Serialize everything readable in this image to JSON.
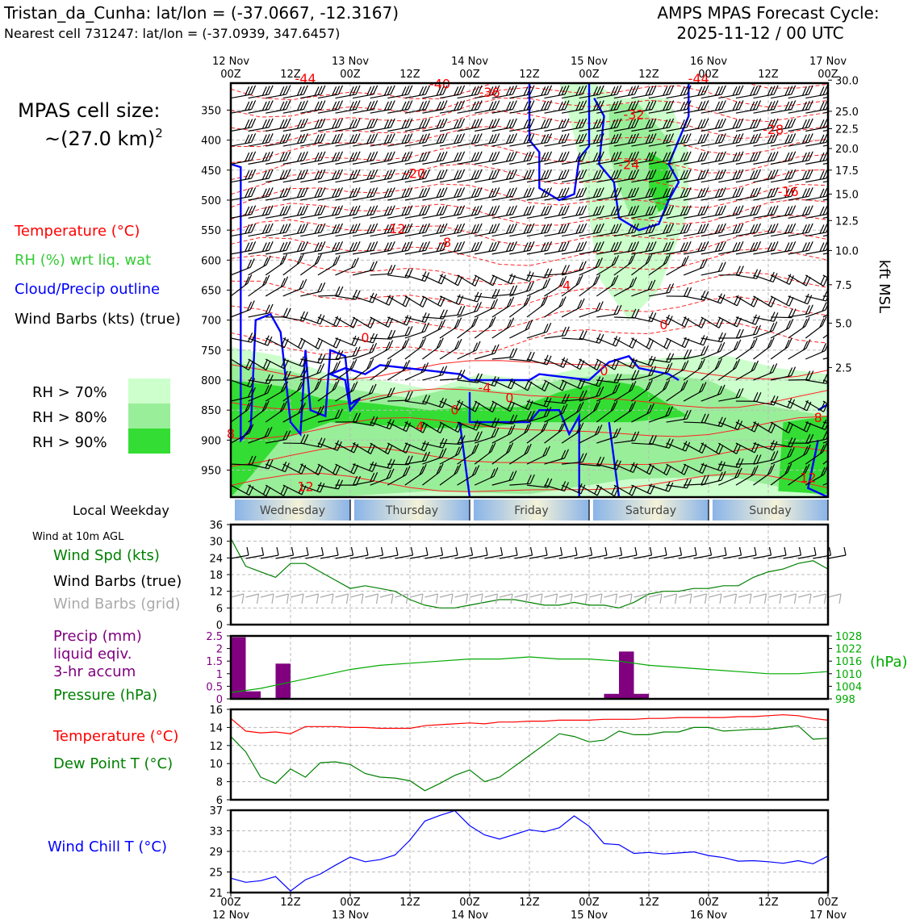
{
  "header": {
    "station": "Tristan_da_Cunha: lat/lon = (-37.0667, -12.3167)",
    "nearest": "Nearest cell 731247: lat/lon = (-37.0939, 347.6457)",
    "cycle_label": "AMPS MPAS Forecast Cycle:",
    "cycle_time": "2025-11-12 / 00 UTC"
  },
  "cell_size": {
    "label": "MPAS cell size:",
    "value": "~(27.0 km)",
    "exponent": "2"
  },
  "legend": {
    "temperature": "Temperature (°C)",
    "rh": "RH (%) wrt liq. wat",
    "cloud": "Cloud/Precip outline",
    "wind": "Wind Barbs (kts) (true)",
    "rh70": "RH > 70%",
    "rh80": "RH > 80%",
    "rh90": "RH > 90%"
  },
  "colors": {
    "temperature": "#ff0000",
    "rh_line": "#00aa00",
    "rh_label": "#33cc33",
    "cloud": "#0000ff",
    "precip": "#800080",
    "rh70": "#ccffcc",
    "rh80": "#99ee99",
    "rh90": "#33dd33"
  },
  "right_axis_label": "kft MSL",
  "weekday_label": "Local Weekday",
  "weekdays": [
    "Wednesday",
    "Thursday",
    "Friday",
    "Saturday",
    "Sunday"
  ],
  "wind10m_label": "Wind at 10m AGL",
  "panel_labels": {
    "wind_spd": "Wind Spd (kts)",
    "wind_true": "Wind Barbs (true)",
    "wind_grid": "Wind Barbs (grid)",
    "precip1": "Precip (mm)",
    "precip2": "liquid eqiv.",
    "precip3": "3-hr accum",
    "pressure": "Pressure (hPa)",
    "hpa_unit": "(hPa)",
    "temp": "Temperature (°C)",
    "dew": "Dew Point T (°C)",
    "chill": "Wind Chill T (°C)"
  },
  "chart_data": [
    {
      "type": "time-height cross-section",
      "time_ticks": [
        "00Z",
        "12Z",
        "00Z",
        "12Z",
        "00Z",
        "12Z",
        "00Z",
        "12Z",
        "00Z",
        "12Z",
        "00Z"
      ],
      "date_ticks": [
        "12 Nov",
        "13 Nov",
        "14 Nov",
        "15 Nov",
        "16 Nov",
        "17 Nov"
      ],
      "pressure_ticks": [
        350,
        400,
        450,
        500,
        550,
        600,
        650,
        700,
        750,
        800,
        850,
        900,
        950
      ],
      "kft_ticks": [
        "30.0",
        "25.0",
        "22.5",
        "20.0",
        "17.5",
        "15.0",
        "12.5",
        "10.0",
        "7.5",
        "5.0",
        "2.5"
      ],
      "kft_levels": [
        300,
        352,
        381,
        414,
        450,
        490,
        534,
        584,
        641,
        705,
        779
      ],
      "temperature_labels": [
        {
          "text": "-44",
          "h": 15,
          "p": 305
        },
        {
          "text": "-40",
          "h": 42,
          "p": 314
        },
        {
          "text": "-36",
          "h": 52,
          "p": 328
        },
        {
          "text": "-44",
          "h": 94,
          "p": 305
        },
        {
          "text": "-32",
          "h": 81,
          "p": 365
        },
        {
          "text": "-28",
          "h": 109,
          "p": 390
        },
        {
          "text": "-24",
          "h": 80,
          "p": 448
        },
        {
          "text": "-20",
          "h": 37,
          "p": 463
        },
        {
          "text": "-16",
          "h": 112,
          "p": 493
        },
        {
          "text": "-12",
          "h": 33,
          "p": 555
        },
        {
          "text": "-8",
          "h": 43,
          "p": 578
        },
        {
          "text": "-4",
          "h": 67,
          "p": 650
        },
        {
          "text": "0",
          "h": 87,
          "p": 715
        },
        {
          "text": "0",
          "h": 27,
          "p": 737
        },
        {
          "text": "0",
          "h": 75,
          "p": 792
        },
        {
          "text": "-4",
          "h": 51,
          "p": 820
        },
        {
          "text": "0",
          "h": 56,
          "p": 837
        },
        {
          "text": "0",
          "h": 45,
          "p": 857
        },
        {
          "text": "4",
          "h": 38,
          "p": 885
        },
        {
          "text": "8",
          "h": 0,
          "p": 897
        },
        {
          "text": "8",
          "h": 118,
          "p": 870
        },
        {
          "text": "12",
          "h": 15,
          "p": 985
        },
        {
          "text": "12",
          "h": 116,
          "p": 970
        }
      ]
    },
    {
      "type": "line+barbs",
      "title": "Wind Spd (kts)",
      "ylim": [
        0,
        36
      ],
      "yticks": [
        0,
        6,
        12,
        18,
        24,
        30,
        36
      ],
      "x_hours": [
        0,
        3,
        6,
        9,
        12,
        15,
        18,
        21,
        24,
        27,
        30,
        33,
        36,
        39,
        42,
        45,
        48,
        51,
        54,
        57,
        60,
        63,
        66,
        69,
        72,
        75,
        78,
        81,
        84,
        87,
        90,
        93,
        96,
        99,
        102,
        105,
        108,
        111,
        114,
        117,
        120
      ],
      "series": [
        {
          "name": "Wind Spd (kts)",
          "color": "#008000",
          "values": [
            31,
            21,
            19,
            17,
            22,
            22,
            19,
            16,
            13,
            14,
            13,
            12,
            9,
            7,
            6,
            6,
            7,
            8,
            9,
            9,
            8,
            7,
            7,
            8,
            7,
            7,
            6,
            8,
            11,
            12,
            12,
            13,
            13,
            14,
            14,
            17,
            19,
            20,
            22,
            23,
            20
          ]
        }
      ]
    },
    {
      "type": "bar+line",
      "title": "Precip (mm) / Pressure (hPa)",
      "precip_ylim": [
        0,
        2.5
      ],
      "precip_yticks": [
        0,
        0.5,
        1.0,
        1.5,
        2.0,
        2.5
      ],
      "pressure_ylim": [
        998,
        1028
      ],
      "pressure_yticks": [
        998,
        1004,
        1010,
        1016,
        1022,
        1028
      ],
      "precip_bars": [
        {
          "start_h": 0,
          "end_h": 3,
          "value": 2.45
        },
        {
          "start_h": 3,
          "end_h": 6,
          "value": 0.3
        },
        {
          "start_h": 9,
          "end_h": 12,
          "value": 1.4
        },
        {
          "start_h": 75,
          "end_h": 78,
          "value": 0.2
        },
        {
          "start_h": 78,
          "end_h": 81,
          "value": 1.88
        },
        {
          "start_h": 81,
          "end_h": 84,
          "value": 0.2
        }
      ],
      "pressure_x_hours": [
        0,
        6,
        12,
        18,
        24,
        30,
        36,
        42,
        48,
        54,
        60,
        66,
        72,
        78,
        84,
        90,
        96,
        102,
        108,
        114,
        120
      ],
      "pressure_values": [
        1001,
        1003,
        1006,
        1009,
        1012,
        1014,
        1015,
        1016,
        1017,
        1017,
        1018,
        1017,
        1017,
        1016,
        1014,
        1013,
        1012,
        1011,
        1010,
        1010,
        1011
      ]
    },
    {
      "type": "line",
      "title": "Temperature (°C) / Dew Point T (°C)",
      "ylim": [
        6,
        16
      ],
      "yticks": [
        6,
        8,
        10,
        12,
        14,
        16
      ],
      "x_hours": [
        0,
        3,
        6,
        9,
        12,
        15,
        18,
        21,
        24,
        27,
        30,
        33,
        36,
        39,
        42,
        45,
        48,
        51,
        54,
        57,
        60,
        63,
        66,
        69,
        72,
        75,
        78,
        81,
        84,
        87,
        90,
        93,
        96,
        99,
        102,
        105,
        108,
        111,
        114,
        117,
        120
      ],
      "series": [
        {
          "name": "Temperature (°C)",
          "color": "#ff0000",
          "values": [
            15.0,
            13.6,
            13.4,
            13.5,
            13.3,
            14.1,
            14.1,
            14.1,
            14.0,
            14.0,
            13.9,
            13.9,
            13.9,
            14.2,
            14.3,
            14.4,
            14.5,
            14.4,
            14.6,
            14.6,
            14.7,
            14.7,
            14.8,
            14.8,
            14.8,
            14.9,
            14.9,
            14.9,
            15.0,
            15.0,
            15.1,
            15.1,
            15.1,
            15.1,
            15.2,
            15.2,
            15.3,
            15.4,
            15.3,
            15.0,
            14.8
          ]
        },
        {
          "name": "Dew Point T (°C)",
          "color": "#008000",
          "values": [
            13.0,
            11.3,
            8.5,
            7.8,
            9.4,
            8.5,
            10.1,
            10.2,
            9.9,
            8.9,
            8.5,
            8.4,
            8.1,
            7.0,
            7.8,
            8.7,
            9.3,
            8.0,
            8.5,
            9.7,
            10.9,
            12.1,
            13.3,
            13.0,
            12.4,
            12.6,
            13.6,
            13.2,
            13.2,
            13.5,
            13.5,
            14.0,
            14.0,
            13.6,
            13.7,
            13.8,
            13.8,
            14.0,
            14.2,
            12.7,
            12.8
          ]
        }
      ]
    },
    {
      "type": "line",
      "title": "Wind Chill T (°C)",
      "ylim": [
        21,
        37
      ],
      "yticks": [
        21,
        25,
        29,
        33,
        37
      ],
      "x_hours": [
        0,
        3,
        6,
        9,
        12,
        15,
        18,
        21,
        24,
        27,
        30,
        33,
        36,
        39,
        42,
        45,
        48,
        51,
        54,
        57,
        60,
        63,
        66,
        69,
        72,
        75,
        78,
        81,
        84,
        87,
        90,
        93,
        96,
        99,
        102,
        105,
        108,
        111,
        114,
        117,
        120
      ],
      "series": [
        {
          "name": "Wind Chill T (°C)",
          "color": "#0000ff",
          "values": [
            23.8,
            23.0,
            23.3,
            24.1,
            21.3,
            23.5,
            24.6,
            26.3,
            27.9,
            27.0,
            27.4,
            28.3,
            31.2,
            34.9,
            36.0,
            36.9,
            34.0,
            32.2,
            31.4,
            32.3,
            33.2,
            32.8,
            33.6,
            35.9,
            33.9,
            30.5,
            30.3,
            28.6,
            28.8,
            28.5,
            28.7,
            28.9,
            28.2,
            27.8,
            27.1,
            27.2,
            27.0,
            26.7,
            27.2,
            26.6,
            28.1
          ]
        }
      ]
    }
  ]
}
